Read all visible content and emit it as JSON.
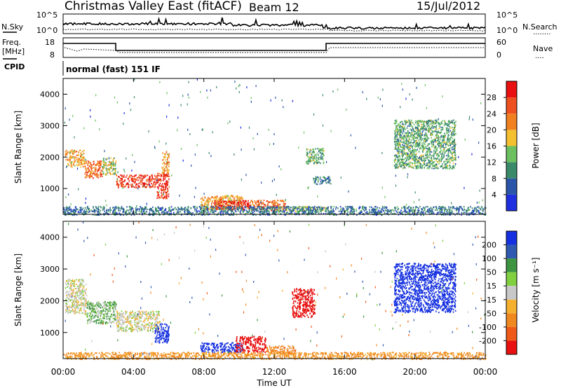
{
  "header": {
    "title": "Christmas Valley East (fitACF)",
    "beam": "Beam 12",
    "date": "15/Jul/2012"
  },
  "noise_panel": {
    "left_label": "N.Sky",
    "left_ticks": [
      "10^5",
      "10^0"
    ],
    "right_ticks": [
      "10^5",
      "10^0"
    ],
    "right_label": "N.Search",
    "right_legend": "........"
  },
  "freq_panel": {
    "left_label_1": "Freq.",
    "left_label_2": "[MHz]",
    "left_ticks": [
      "18",
      "8"
    ],
    "right_ticks": [
      "60",
      "0"
    ],
    "right_label": "Nave",
    "right_legend": "...."
  },
  "cpid": {
    "label": "CPID",
    "mode": "normal (fast) 151 IF"
  },
  "axes": {
    "ylabel": "Slant Range [km]",
    "xlabel": "Time UT",
    "x_ticks": [
      "00:00",
      "04:00",
      "08:00",
      "12:00",
      "16:00",
      "20:00",
      "00:00"
    ],
    "y_ticks": [
      "1000",
      "2000",
      "3000",
      "4000"
    ],
    "y_range_km": [
      180,
      4500
    ],
    "x_range_hours": [
      0,
      24
    ]
  },
  "power_colorbar": {
    "label": "Power [dB]",
    "ticks": [
      "4",
      "8",
      "12",
      "16",
      "20",
      "24",
      "28"
    ],
    "colors": [
      "#1f2fe0",
      "#2a55a8",
      "#3a8a6a",
      "#6cc060",
      "#f5c030",
      "#f08020",
      "#ee5020",
      "#e81010"
    ]
  },
  "velocity_colorbar": {
    "label": "Velocity [m s⁻¹]",
    "ticks": [
      "200",
      "100",
      "50",
      "15",
      "-15",
      "-50",
      "-100",
      "-200"
    ],
    "colors": [
      "#1530e0",
      "#2f5ab0",
      "#3c9440",
      "#80d040",
      "#c8c8c8",
      "#f5b030",
      "#f08820",
      "#f05a18",
      "#e81010"
    ]
  },
  "chart_data": [
    {
      "type": "heatmap",
      "name": "Power",
      "x_unit": "hours UT",
      "y_unit": "km",
      "regions": [
        {
          "x": [
            0.1,
            1.2
          ],
          "y": [
            1700,
            2250
          ],
          "value_db": 20
        },
        {
          "x": [
            1.2,
            2.2
          ],
          "y": [
            1350,
            1900
          ],
          "value_db": 24
        },
        {
          "x": [
            2.2,
            3.0
          ],
          "y": [
            1450,
            2000
          ],
          "value_db": 16
        },
        {
          "x": [
            3.0,
            5.3
          ],
          "y": [
            1050,
            1450
          ],
          "value_db": 28
        },
        {
          "x": [
            5.3,
            6.0
          ],
          "y": [
            700,
            1500
          ],
          "value_db": 28
        },
        {
          "x": [
            5.6,
            6.0
          ],
          "y": [
            1500,
            2200
          ],
          "value_db": 20
        },
        {
          "x": [
            7.8,
            10.2
          ],
          "y": [
            350,
            800
          ],
          "value_db": 20
        },
        {
          "x": [
            8.5,
            10.6
          ],
          "y": [
            350,
            650
          ],
          "value_db": 28
        },
        {
          "x": [
            10.6,
            12.6
          ],
          "y": [
            320,
            650
          ],
          "value_db": 24
        },
        {
          "x": [
            12.6,
            15.0
          ],
          "y": [
            300,
            450
          ],
          "value_db": 16
        },
        {
          "x": [
            13.8,
            14.8
          ],
          "y": [
            1800,
            2300
          ],
          "value_db": 12
        },
        {
          "x": [
            14.2,
            15.2
          ],
          "y": [
            1150,
            1400
          ],
          "value_db": 8
        },
        {
          "x": [
            18.8,
            22.3
          ],
          "y": [
            1650,
            3200
          ],
          "value_db": 12
        },
        {
          "x": [
            0,
            24
          ],
          "y": [
            180,
            450
          ],
          "value_db": 8
        }
      ]
    },
    {
      "type": "heatmap",
      "name": "Velocity",
      "x_unit": "hours UT",
      "y_unit": "km",
      "regions": [
        {
          "x": [
            0.1,
            1.3
          ],
          "y": [
            1600,
            2700
          ],
          "value_ms": 0
        },
        {
          "x": [
            1.3,
            3.0
          ],
          "y": [
            1300,
            2000
          ],
          "value_ms": 30
        },
        {
          "x": [
            3.0,
            5.5
          ],
          "y": [
            1050,
            1700
          ],
          "value_ms": 0
        },
        {
          "x": [
            5.2,
            6.0
          ],
          "y": [
            700,
            1300
          ],
          "value_ms": 200
        },
        {
          "x": [
            7.8,
            10.2
          ],
          "y": [
            400,
            700
          ],
          "value_ms": 200
        },
        {
          "x": [
            9.8,
            11.5
          ],
          "y": [
            400,
            900
          ],
          "value_ms": -200
        },
        {
          "x": [
            11.5,
            13.2
          ],
          "y": [
            350,
            600
          ],
          "value_ms": -80
        },
        {
          "x": [
            13.0,
            14.3
          ],
          "y": [
            1500,
            2400
          ],
          "value_ms": -200
        },
        {
          "x": [
            18.8,
            22.3
          ],
          "y": [
            1650,
            3200
          ],
          "value_ms": 200
        },
        {
          "x": [
            0,
            24
          ],
          "y": [
            180,
            400
          ],
          "value_ms": -60
        }
      ]
    }
  ]
}
